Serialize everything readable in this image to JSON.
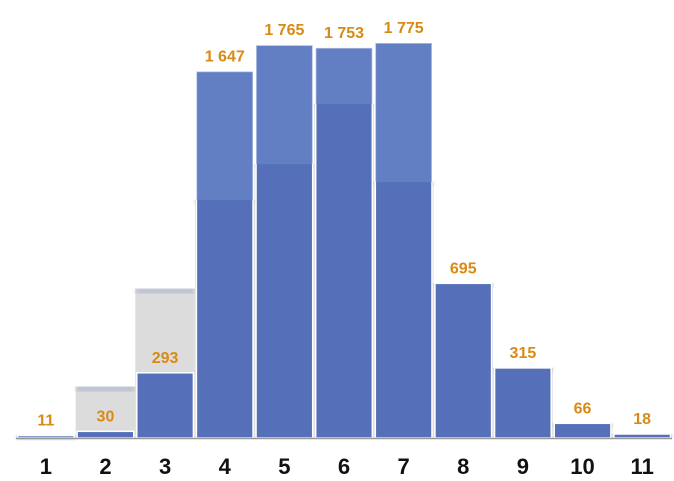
{
  "chart_data": {
    "type": "bar",
    "categories": [
      "1",
      "2",
      "3",
      "4",
      "5",
      "6",
      "7",
      "8",
      "9",
      "10",
      "11"
    ],
    "series": [
      {
        "values": [
          11,
          30,
          293,
          1647,
          1765,
          1753,
          1775,
          695,
          315,
          66,
          18
        ]
      }
    ],
    "data_labels": [
      "11",
      "30",
      "293",
      "1 647",
      "1 765",
      "1 753",
      "1 775",
      "695",
      "315",
      "66",
      "18"
    ],
    "background_profile": [
      11,
      230,
      670,
      1070,
      1230,
      1500,
      1150,
      695,
      315,
      66,
      18
    ],
    "ylim": [
      0,
      1900
    ],
    "grid": false,
    "legend": "none",
    "colors": {
      "bar": "#5570b8",
      "bar_overlay": "#6e8ccc",
      "background": "#dcdcdc",
      "label": "#d98a12",
      "tick": "#111111",
      "axis": "#999999"
    }
  }
}
